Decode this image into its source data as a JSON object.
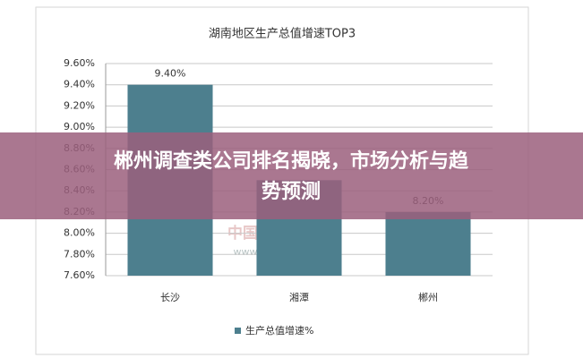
{
  "chart_data": {
    "type": "bar",
    "title": "湖南地区生产总值增速TOP3",
    "categories": [
      "长沙",
      "湘潭",
      "郴州"
    ],
    "series": [
      {
        "name": "生产总值增速%",
        "color": "#4d7f8e",
        "values": [
          9.4,
          8.5,
          8.2
        ]
      }
    ],
    "value_labels": [
      "9.40%",
      null,
      "8.20%"
    ],
    "ylim": [
      7.6,
      9.6
    ],
    "yticks": [
      {
        "value": 7.6,
        "label": "7.60%"
      },
      {
        "value": 7.8,
        "label": "7.80%"
      },
      {
        "value": 8.0,
        "label": "8.00%"
      },
      {
        "value": 8.2,
        "label": "8.20%"
      },
      {
        "value": 8.4,
        "label": "8.40%"
      },
      {
        "value": 8.6,
        "label": "8.60%"
      },
      {
        "value": 8.8,
        "label": "8.80%"
      },
      {
        "value": 9.0,
        "label": "9.00%"
      },
      {
        "value": 9.2,
        "label": "9.20%"
      },
      {
        "value": 9.4,
        "label": "9.40%"
      },
      {
        "value": 9.6,
        "label": "9.60%"
      }
    ],
    "grid": true,
    "legend": "bottom"
  },
  "watermark": {
    "name": "中国产业信息",
    "url": "www.chyxx.com"
  },
  "banner": {
    "line1": "郴州调查类公司排名揭晓，市场分析与趋",
    "line2": "势预测"
  }
}
